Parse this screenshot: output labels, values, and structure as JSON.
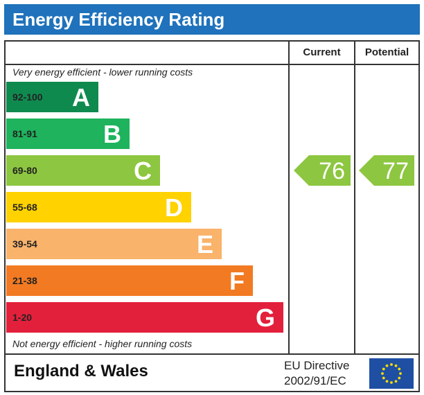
{
  "header": {
    "title": "Energy Efficiency Rating"
  },
  "columns": {
    "current": "Current",
    "potential": "Potential"
  },
  "captions": {
    "top": "Very energy efficient - lower running costs",
    "bottom": "Not energy efficient - higher running costs"
  },
  "footer": {
    "region": "England & Wales",
    "directive_line1": "EU Directive",
    "directive_line2": "2002/91/EC"
  },
  "colors": {
    "title_bar": "#1f72bb",
    "A": "#0f8a4f",
    "B": "#1eb35c",
    "C": "#8dc640",
    "D": "#ffd200",
    "E": "#f9b36b",
    "F": "#f27a22",
    "G": "#e3203b",
    "eu_flag": "#1f4fa3",
    "eu_star": "#ffdd00"
  },
  "chart_data": {
    "type": "bar",
    "title": "Energy Efficiency Rating",
    "bands": [
      {
        "letter": "A",
        "range": "92-100",
        "min": 92,
        "max": 100
      },
      {
        "letter": "B",
        "range": "81-91",
        "min": 81,
        "max": 91
      },
      {
        "letter": "C",
        "range": "69-80",
        "min": 69,
        "max": 80
      },
      {
        "letter": "D",
        "range": "55-68",
        "min": 55,
        "max": 68
      },
      {
        "letter": "E",
        "range": "39-54",
        "min": 39,
        "max": 54
      },
      {
        "letter": "F",
        "range": "21-38",
        "min": 21,
        "max": 38
      },
      {
        "letter": "G",
        "range": "1-20",
        "min": 1,
        "max": 20
      }
    ],
    "ratings": [
      {
        "name": "Current",
        "value": 76,
        "band": "C"
      },
      {
        "name": "Potential",
        "value": 77,
        "band": "C"
      }
    ]
  }
}
